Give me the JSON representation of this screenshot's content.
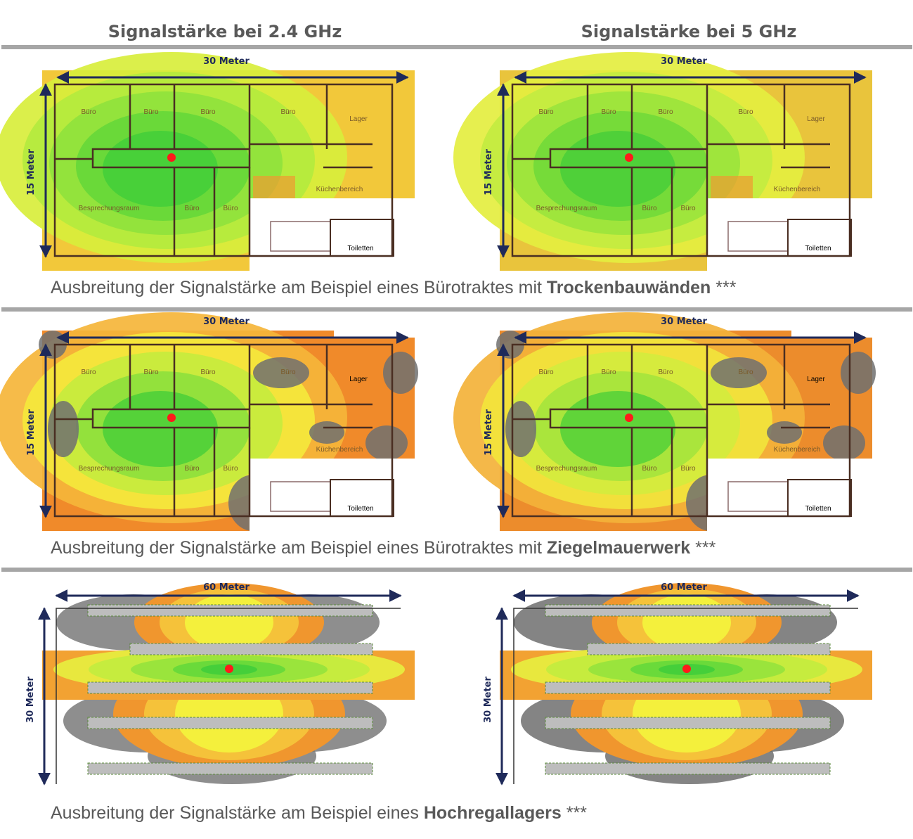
{
  "header": {
    "col_titles": [
      "Signalstärke bei 2.4 GHz",
      "Signalstärke bei 5 GHz"
    ]
  },
  "rows": [
    {
      "panels": [
        {
          "width_label": "30 Meter",
          "height_label": "15 Meter",
          "rooms": [
            "Büro",
            "Büro",
            "Büro",
            "Büro",
            "Lager",
            "Besprechungsraum",
            "Büro",
            "Büro",
            "Küchenbereich",
            "Toiletten"
          ]
        },
        {
          "width_label": "30 Meter",
          "height_label": "15 Meter",
          "rooms": [
            "Büro",
            "Büro",
            "Büro",
            "Büro",
            "Lager",
            "Besprechungsraum",
            "Büro",
            "Büro",
            "Küchenbereich",
            "Toiletten"
          ]
        }
      ],
      "caption": {
        "text": "Ausbreitung der Signalstärke am Beispiel eines Bürotraktes mit",
        "emphasis": "Trockenbauwänden",
        "suffix": "***"
      }
    },
    {
      "panels": [
        {
          "width_label": "30 Meter",
          "height_label": "15 Meter",
          "rooms": [
            "Büro",
            "Büro",
            "Büro",
            "Büro",
            "Lager",
            "Besprechungsraum",
            "Büro",
            "Büro",
            "Küchenbereich",
            "Toiletten"
          ]
        },
        {
          "width_label": "30 Meter",
          "height_label": "15 Meter",
          "rooms": [
            "Büro",
            "Büro",
            "Büro",
            "Büro",
            "Lager",
            "Besprechungsraum",
            "Büro",
            "Büro",
            "Küchenbereich",
            "Toiletten"
          ]
        }
      ],
      "caption": {
        "text": "Ausbreitung der Signalstärke am Beispiel eines Bürotraktes mit",
        "emphasis": "Ziegelmauerwerk",
        "suffix": "***"
      }
    },
    {
      "panels": [
        {
          "width_label": "60 Meter",
          "height_label": "30 Meter"
        },
        {
          "width_label": "60 Meter",
          "height_label": "30 Meter"
        }
      ],
      "caption": {
        "text": "Ausbreitung der Signalstärke am Beispiel eines",
        "emphasis": "Hochregallagers",
        "suffix": "***"
      }
    }
  ]
}
